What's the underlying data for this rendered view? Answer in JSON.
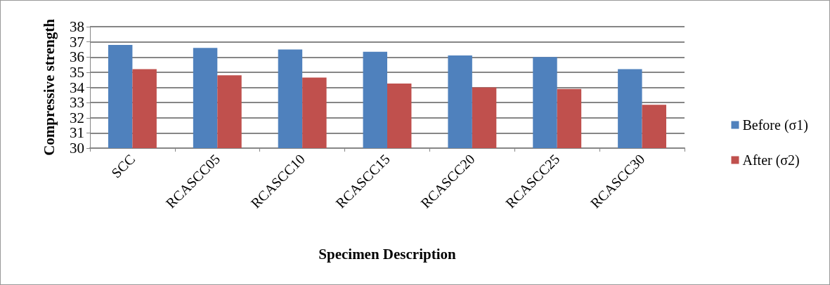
{
  "chart_data": {
    "type": "bar",
    "xlabel": "Specimen Description",
    "ylabel": "Compressive strength",
    "categories": [
      "SCC",
      "RCASCC05",
      "RCASCC10",
      "RCASCC15",
      "RCASCC20",
      "RCASCC25",
      "RCASCC30"
    ],
    "series": [
      {
        "name": "Before (σ1)",
        "color": "#4f81bd",
        "values": [
          36.8,
          36.6,
          36.5,
          36.35,
          36.1,
          36.0,
          35.2
        ]
      },
      {
        "name": "After (σ2)",
        "color": "#c0504d",
        "values": [
          35.2,
          34.8,
          34.65,
          34.25,
          34.0,
          33.9,
          32.85
        ]
      }
    ],
    "ylim": [
      30,
      38
    ],
    "yticks": [
      30,
      31,
      32,
      33,
      34,
      35,
      36,
      37,
      38
    ],
    "grid": "y",
    "legend": "right"
  }
}
